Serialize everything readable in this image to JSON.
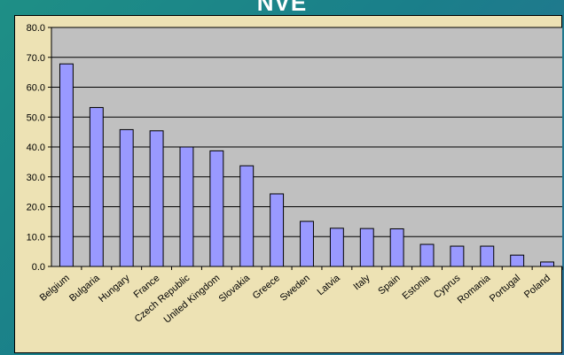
{
  "slide": {
    "title": "NVE"
  },
  "colors": {
    "bar_fill": "#9999ff",
    "bar_stroke": "#000000",
    "plot_bg": "#c0c0c0",
    "chart_bg": "#ede2b4"
  },
  "chart_data": {
    "type": "bar",
    "title": "",
    "xlabel": "",
    "ylabel": "",
    "ylim": [
      0,
      80
    ],
    "yticks": [
      "0.0",
      "10.0",
      "20.0",
      "30.0",
      "40.0",
      "50.0",
      "60.0",
      "70.0",
      "80.0"
    ],
    "grid": true,
    "categories": [
      "Belgium",
      "Bulgaria",
      "Hungary",
      "France",
      "Czech Republic",
      "United Kingdom",
      "Slovakia",
      "Greece",
      "Sweden",
      "Latvia",
      "Italy",
      "Spain",
      "Estonia",
      "Cyprus",
      "Romania",
      "Portugal",
      "Poland"
    ],
    "values": [
      67.8,
      53.2,
      45.8,
      45.4,
      40.0,
      38.7,
      33.7,
      24.3,
      15.1,
      12.8,
      12.7,
      12.6,
      7.4,
      6.8,
      6.8,
      3.8,
      1.5
    ]
  }
}
